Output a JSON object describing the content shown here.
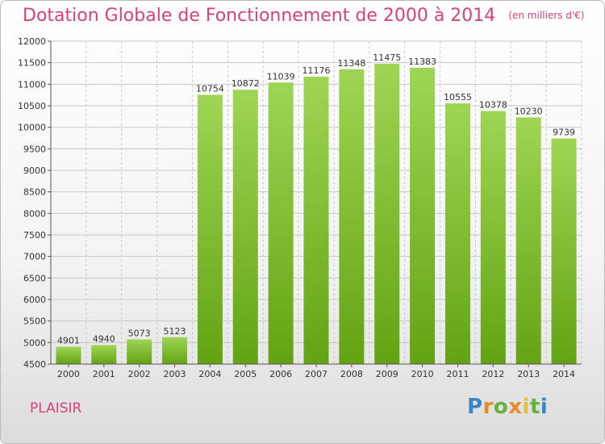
{
  "title": {
    "main": "Dotation Globale de Fonctionnement de 2000 à 2014",
    "unit": "(en milliers d'€)"
  },
  "footer": {
    "city": "PLAISIR",
    "logo": "Proxiti"
  },
  "colors": {
    "bar_top": "#9fd554",
    "bar_bottom": "#63a313",
    "title": "#d3427a",
    "grid": "#c8c8c8"
  },
  "chart_data": {
    "type": "bar",
    "categories": [
      "2000",
      "2001",
      "2002",
      "2003",
      "2004",
      "2005",
      "2006",
      "2007",
      "2008",
      "2009",
      "2010",
      "2011",
      "2012",
      "2013",
      "2014"
    ],
    "values": [
      4901,
      4940,
      5073,
      5123,
      10754,
      10872,
      11039,
      11176,
      11348,
      11475,
      11383,
      10555,
      10378,
      10230,
      9739
    ],
    "ylim": [
      4500,
      12000
    ],
    "yticks": [
      4500,
      5000,
      5500,
      6000,
      6500,
      7000,
      7500,
      8000,
      8500,
      9000,
      9500,
      10000,
      10500,
      11000,
      11500,
      12000
    ],
    "grid": true,
    "title": "Dotation Globale de Fonctionnement de 2000 à 2014",
    "xlabel": "",
    "ylabel": ""
  }
}
